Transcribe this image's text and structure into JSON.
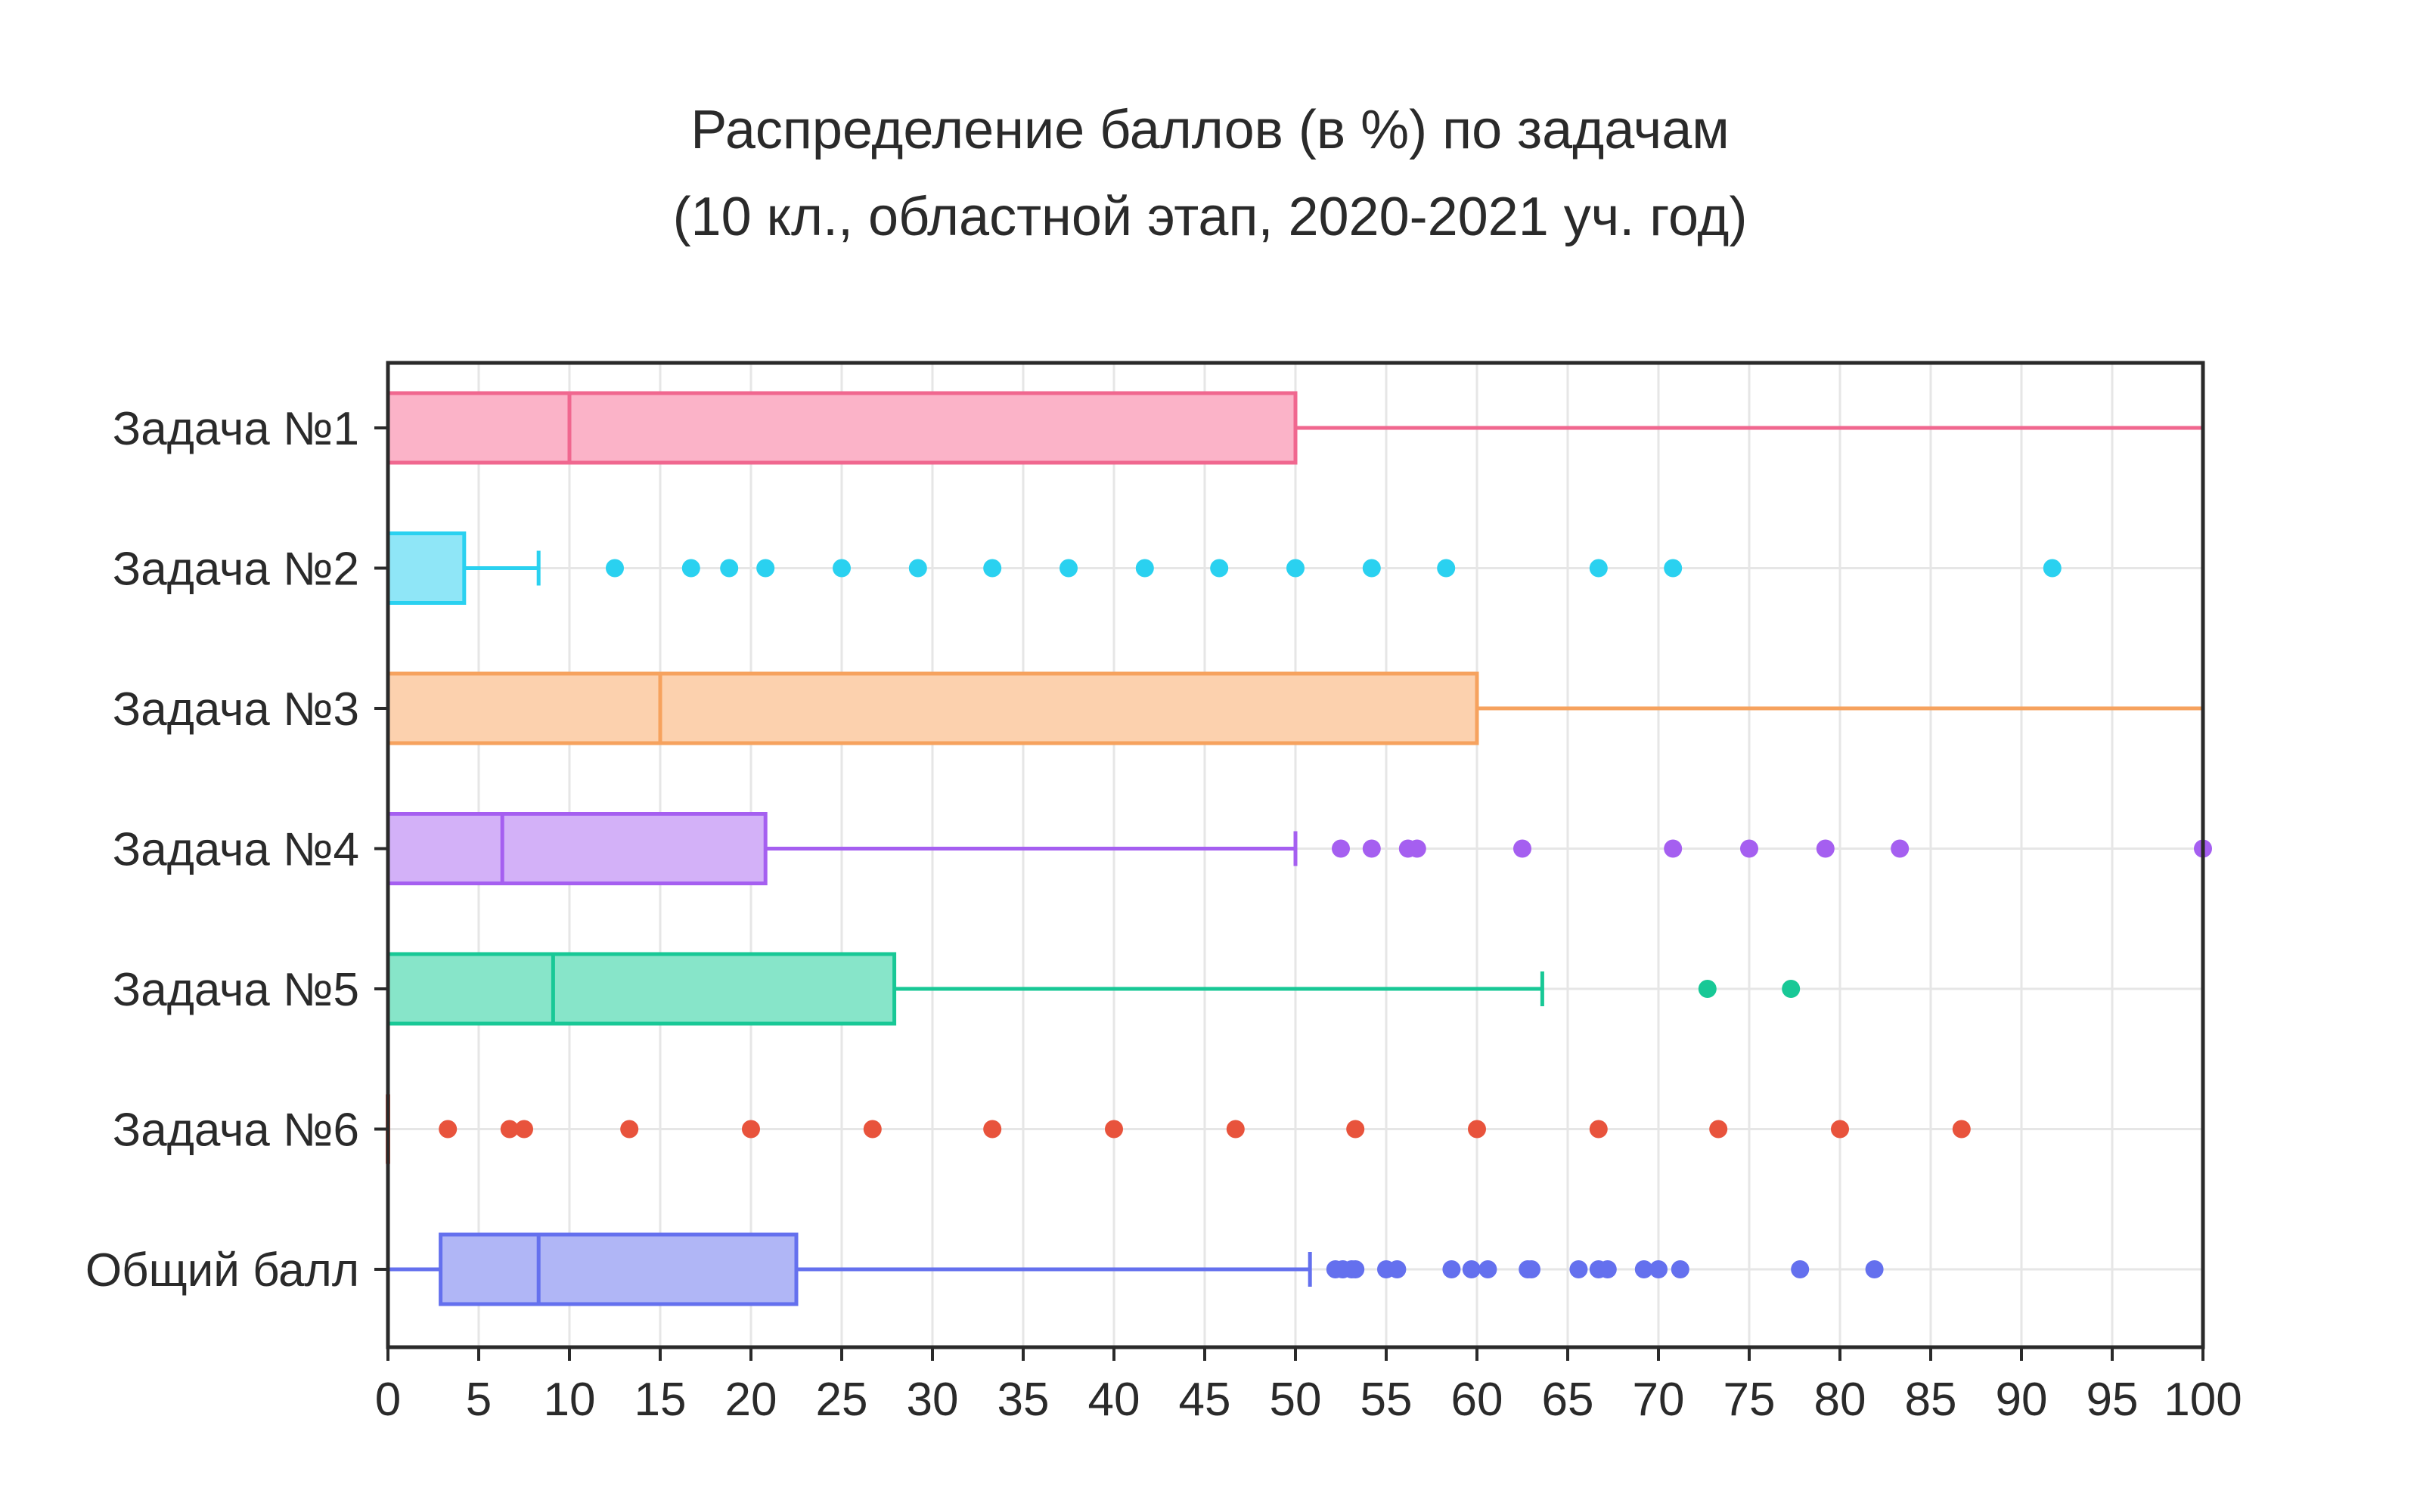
{
  "chart_data": {
    "type": "box",
    "orientation": "horizontal",
    "title": [
      "Распределение баллов (в %) по задачам",
      "(10 кл., областной этап, 2020-2021 уч. год)"
    ],
    "xlabel": "",
    "ylabel": "",
    "xlim": [
      0,
      100
    ],
    "xticks": [
      0,
      5,
      10,
      15,
      20,
      25,
      30,
      35,
      40,
      45,
      50,
      55,
      60,
      65,
      70,
      75,
      80,
      85,
      90,
      95,
      100
    ],
    "grid": true,
    "legend": "none",
    "series": [
      {
        "name": "Задача №1",
        "color": "#f0678f",
        "fill": "#fbb3c8",
        "min": 0,
        "q1": 0,
        "median": 10,
        "q3": 50,
        "max": 100,
        "outliers": []
      },
      {
        "name": "Задача №2",
        "color": "#2ad1f0",
        "fill": "#8fe6f7",
        "min": 0,
        "q1": 0,
        "median": 0,
        "q3": 4.2,
        "max": 8.3,
        "outliers": [
          12.5,
          16.7,
          18.8,
          20.8,
          25,
          29.2,
          33.3,
          37.5,
          41.7,
          45.8,
          50,
          54.2,
          58.3,
          66.7,
          70.8,
          91.7
        ]
      },
      {
        "name": "Задача №3",
        "color": "#f6a25e",
        "fill": "#fcd1ae",
        "min": 0,
        "q1": 0,
        "median": 15,
        "q3": 60,
        "max": 100,
        "outliers": []
      },
      {
        "name": "Задача №4",
        "color": "#a55ff0",
        "fill": "#d3b1f8",
        "min": 0,
        "q1": 0,
        "median": 6.3,
        "q3": 20.8,
        "max": 50,
        "outliers": [
          52.5,
          54.2,
          56.2,
          56.7,
          62.5,
          70.8,
          75,
          79.2,
          83.3,
          100
        ]
      },
      {
        "name": "Задача №5",
        "color": "#18c896",
        "fill": "#87e5c9",
        "min": 0,
        "q1": 0,
        "median": 9.1,
        "q3": 27.9,
        "max": 63.6,
        "outliers": [
          72.7,
          77.3
        ]
      },
      {
        "name": "Задача №6",
        "color": "#e8533c",
        "fill": "#f3a99c",
        "min": 0,
        "q1": 0,
        "median": 0,
        "q3": 0,
        "max": 0,
        "outliers": [
          3.3,
          6.7,
          7.5,
          13.3,
          20,
          26.7,
          33.3,
          40,
          46.7,
          53.3,
          60,
          66.7,
          73.3,
          80,
          86.7
        ]
      },
      {
        "name": "Общий балл",
        "color": "#6470ee",
        "fill": "#b0b6f6",
        "min": 0,
        "q1": 2.9,
        "median": 8.3,
        "q3": 22.5,
        "max": 50.8,
        "outliers": [
          52.2,
          52.6,
          53.1,
          53.3,
          55,
          55.6,
          58.6,
          59.7,
          60.6,
          62.8,
          63,
          65.6,
          66.7,
          67.2,
          69.2,
          70,
          71.2,
          77.8,
          81.9
        ]
      }
    ]
  }
}
